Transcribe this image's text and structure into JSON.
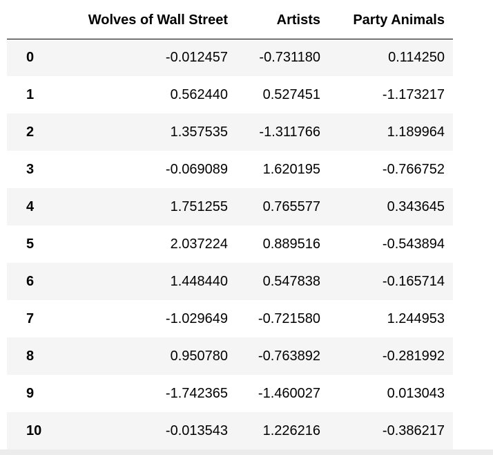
{
  "table": {
    "index_header": "",
    "columns": [
      "Wolves of Wall Street",
      "Artists",
      "Party Animals"
    ],
    "rows": [
      {
        "index": "0",
        "values": [
          "-0.012457",
          "-0.731180",
          "0.114250"
        ]
      },
      {
        "index": "1",
        "values": [
          "0.562440",
          "0.527451",
          "-1.173217"
        ]
      },
      {
        "index": "2",
        "values": [
          "1.357535",
          "-1.311766",
          "1.189964"
        ]
      },
      {
        "index": "3",
        "values": [
          "-0.069089",
          "1.620195",
          "-0.766752"
        ]
      },
      {
        "index": "4",
        "values": [
          "1.751255",
          "0.765577",
          "0.343645"
        ]
      },
      {
        "index": "5",
        "values": [
          "2.037224",
          "0.889516",
          "-0.543894"
        ]
      },
      {
        "index": "6",
        "values": [
          "1.448440",
          "0.547838",
          "-0.165714"
        ]
      },
      {
        "index": "7",
        "values": [
          "-1.029649",
          "-0.721580",
          "1.244953"
        ]
      },
      {
        "index": "8",
        "values": [
          "0.950780",
          "-0.763892",
          "-0.281992"
        ]
      },
      {
        "index": "9",
        "values": [
          "-1.742365",
          "-1.460027",
          "0.013043"
        ]
      },
      {
        "index": "10",
        "values": [
          "-0.013543",
          "1.226216",
          "-0.386217"
        ]
      }
    ]
  },
  "colors": {
    "row_stripe": "#f5f5f5",
    "row_plain": "#ffffff",
    "header_rule": "#000000",
    "text": "#000000"
  }
}
